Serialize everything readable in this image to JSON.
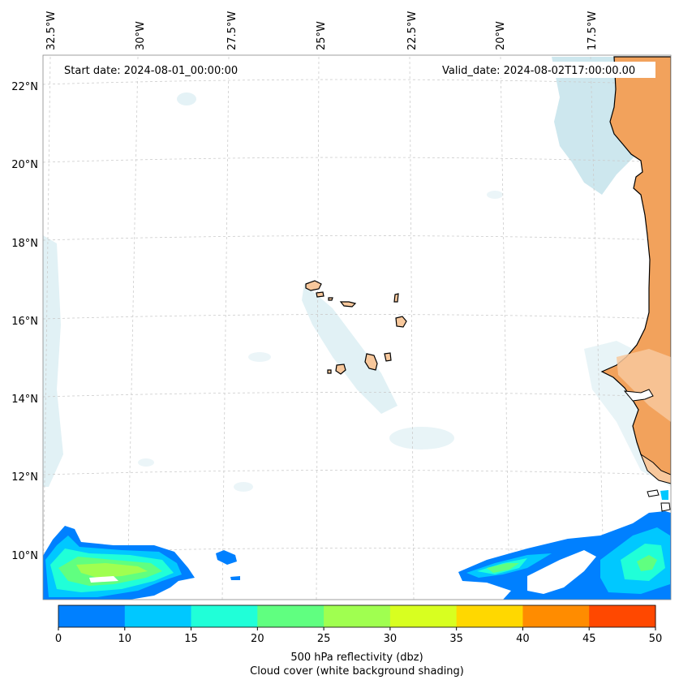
{
  "header": {
    "start_date": "Start date: 2024-08-01_00:00:00",
    "valid_date": "Valid_date: 2024-08-02T17:00:00.00"
  },
  "longitude_labels": [
    "32.5°W",
    "30°W",
    "27.5°W",
    "25°W",
    "22.5°W",
    "20°W",
    "17.5°W"
  ],
  "latitude_labels": [
    "22°N",
    "20°N",
    "18°N",
    "16°N",
    "14°N",
    "12°N",
    "10°N"
  ],
  "colorbar": {
    "ticks": [
      "0",
      "10",
      "15",
      "20",
      "25",
      "30",
      "35",
      "40",
      "45",
      "50"
    ],
    "colors": [
      "#0080ff",
      "#00c8ff",
      "#20ffd8",
      "#60ff80",
      "#a0ff50",
      "#d8ff20",
      "#ffd800",
      "#ff8c00",
      "#ff4800"
    ],
    "label_line1": "500 hPa reflectivity (dbz)",
    "label_line2": "Cloud cover (white background shading)"
  },
  "colors": {
    "land": "#f2a25c",
    "island": "#f8c89c",
    "cloud": "#bcdfe8",
    "coast": "#000000"
  }
}
